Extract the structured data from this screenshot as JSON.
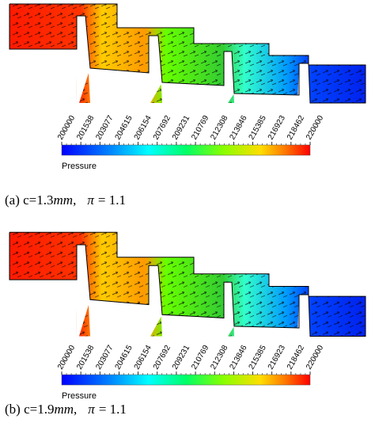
{
  "panels": [
    {
      "colorbar": {
        "range": [
          200000,
          220000
        ],
        "ticks": [
          200000,
          201538,
          203077,
          204615,
          206154,
          207692,
          209231,
          210769,
          212308,
          213846,
          215385,
          216923,
          218462,
          220000
        ],
        "label": "Pressure"
      },
      "caption": {
        "prefix": "(a) c=1.3",
        "unit": "mm",
        "separator": ",",
        "symbol": "π",
        "suffix": "= 1.1"
      }
    },
    {
      "colorbar": {
        "range": [
          200000,
          220000
        ],
        "ticks": [
          200000,
          201538,
          203077,
          204615,
          206154,
          207692,
          209231,
          210769,
          212308,
          213846,
          215385,
          216923,
          218462,
          220000
        ],
        "label": "Pressure"
      },
      "caption": {
        "prefix": "(b) c=1.9",
        "unit": "mm",
        "separator": ",",
        "symbol": "π",
        "suffix": "= 1.1"
      }
    }
  ]
}
